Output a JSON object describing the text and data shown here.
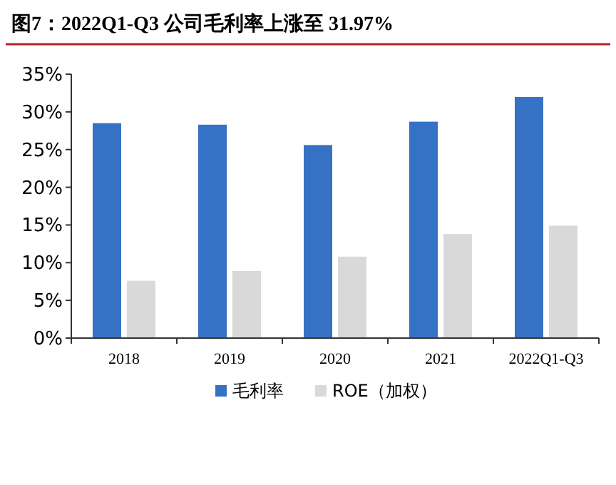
{
  "chart_data": {
    "type": "bar",
    "title": "图7：2022Q1-Q3 公司毛利率上涨至 31.97%",
    "categories": [
      "2018",
      "2019",
      "2020",
      "2021",
      "2022Q1-Q3"
    ],
    "series": [
      {
        "name": "毛利率",
        "color": "#3572c6",
        "values": [
          28.5,
          28.3,
          25.6,
          28.7,
          31.97
        ]
      },
      {
        "name": "ROE（加权）",
        "color": "#d9d9d9",
        "values": [
          7.6,
          8.9,
          10.8,
          13.8,
          14.9
        ]
      }
    ],
    "ylim": [
      0,
      35
    ],
    "yticks": [
      {
        "value": 0,
        "label": "0%"
      },
      {
        "value": 5,
        "label": "5%"
      },
      {
        "value": 10,
        "label": "10%"
      },
      {
        "value": 15,
        "label": "15%"
      },
      {
        "value": 20,
        "label": "20%"
      },
      {
        "value": 25,
        "label": "25%"
      },
      {
        "value": 30,
        "label": "30%"
      },
      {
        "value": 35,
        "label": "35%"
      }
    ],
    "grid": false,
    "legend": "bottom"
  }
}
